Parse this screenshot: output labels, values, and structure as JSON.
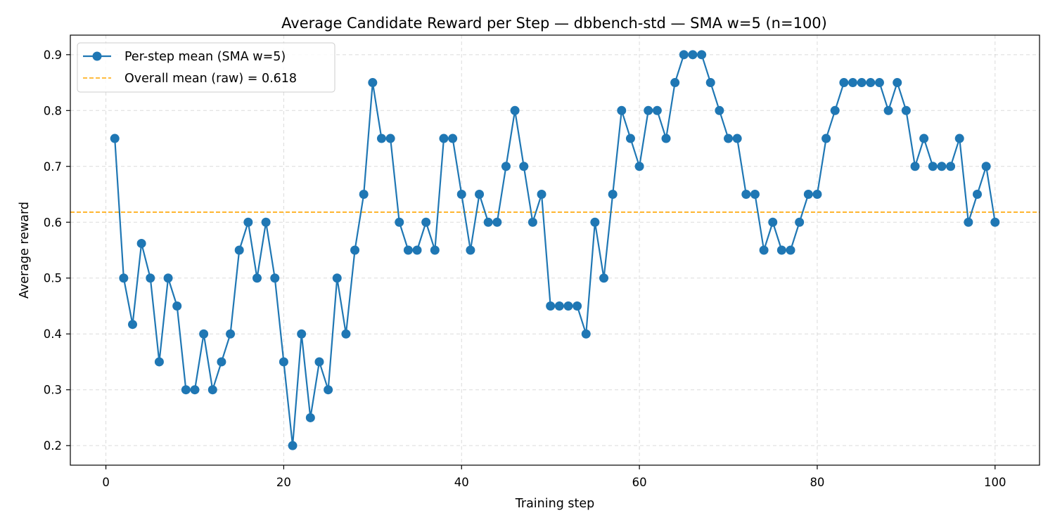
{
  "chart_data": {
    "type": "line",
    "title": "Average Candidate Reward per Step — dbbench-std — SMA w=5 (n=100)",
    "xlabel": "Training step",
    "ylabel": "Average reward",
    "xlim": [
      -4,
      105
    ],
    "ylim": [
      0.165,
      0.935
    ],
    "xticks": [
      0,
      20,
      40,
      60,
      80,
      100
    ],
    "xtick_labels": [
      "0",
      "20",
      "40",
      "60",
      "80",
      "100"
    ],
    "yticks": [
      0.2,
      0.3,
      0.4,
      0.5,
      0.6,
      0.7,
      0.8,
      0.9
    ],
    "ytick_labels": [
      "0.2",
      "0.3",
      "0.4",
      "0.5",
      "0.6",
      "0.7",
      "0.8",
      "0.9"
    ],
    "grid": true,
    "legend_position": "top-left",
    "series": [
      {
        "name": "Per-step mean (SMA w=5)",
        "color": "#1f77b4",
        "marker": "circle",
        "x": [
          1,
          2,
          3,
          4,
          5,
          6,
          7,
          8,
          9,
          10,
          11,
          12,
          13,
          14,
          15,
          16,
          17,
          18,
          19,
          20,
          21,
          22,
          23,
          24,
          25,
          26,
          27,
          28,
          29,
          30,
          31,
          32,
          33,
          34,
          35,
          36,
          37,
          38,
          39,
          40,
          41,
          42,
          43,
          44,
          45,
          46,
          47,
          48,
          49,
          50,
          51,
          52,
          53,
          54,
          55,
          56,
          57,
          58,
          59,
          60,
          61,
          62,
          63,
          64,
          65,
          66,
          67,
          68,
          69,
          70,
          71,
          72,
          73,
          74,
          75,
          76,
          77,
          78,
          79,
          80,
          81,
          82,
          83,
          84,
          85,
          86,
          87,
          88,
          89,
          90,
          91,
          92,
          93,
          94,
          95,
          96,
          97,
          98,
          99,
          100
        ],
        "values": [
          0.75,
          0.5,
          0.417,
          0.562,
          0.5,
          0.35,
          0.5,
          0.45,
          0.3,
          0.3,
          0.4,
          0.3,
          0.35,
          0.4,
          0.55,
          0.6,
          0.5,
          0.6,
          0.5,
          0.35,
          0.2,
          0.4,
          0.25,
          0.35,
          0.3,
          0.5,
          0.4,
          0.55,
          0.65,
          0.85,
          0.75,
          0.75,
          0.6,
          0.55,
          0.55,
          0.6,
          0.55,
          0.75,
          0.75,
          0.65,
          0.55,
          0.65,
          0.6,
          0.6,
          0.7,
          0.8,
          0.7,
          0.6,
          0.65,
          0.45,
          0.45,
          0.45,
          0.45,
          0.4,
          0.6,
          0.5,
          0.65,
          0.8,
          0.75,
          0.7,
          0.8,
          0.8,
          0.75,
          0.85,
          0.9,
          0.9,
          0.9,
          0.85,
          0.8,
          0.75,
          0.75,
          0.65,
          0.65,
          0.55,
          0.6,
          0.55,
          0.55,
          0.6,
          0.65,
          0.65,
          0.75,
          0.8,
          0.85,
          0.85,
          0.85,
          0.85,
          0.85,
          0.8,
          0.85,
          0.8,
          0.7,
          0.75,
          0.7,
          0.7,
          0.7,
          0.75,
          0.6,
          0.65,
          0.7,
          0.6
        ]
      }
    ],
    "reference_lines": [
      {
        "name": "Overall mean (raw) = 0.618",
        "value": 0.618,
        "color": "#ffa500",
        "style": "dashed"
      }
    ]
  }
}
